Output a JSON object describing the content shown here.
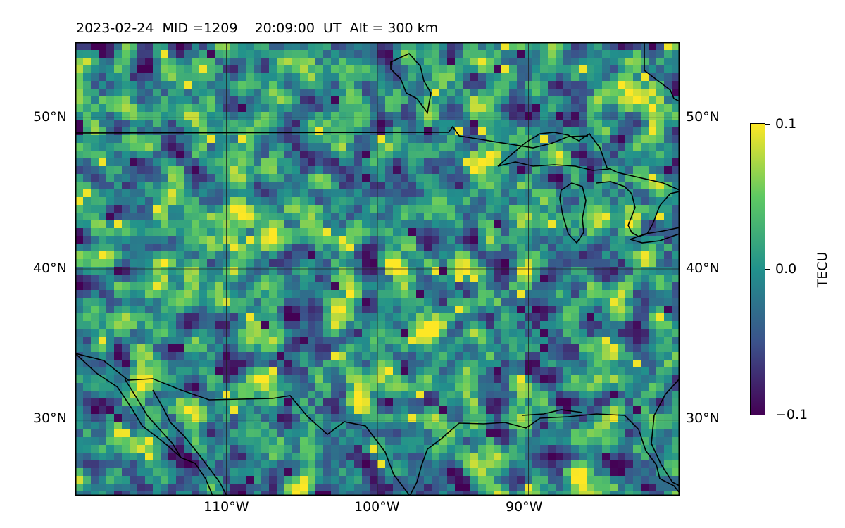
{
  "title": "2023-02-24  MID =1209    20:09:00  UT  Alt = 300 km",
  "map": {
    "variable": "TEC anomaly (viridis colormap)",
    "extent": {
      "lon_min": -120,
      "lon_max": -80,
      "lat_min": 25,
      "lat_max": 55
    },
    "lat_ticks": [
      {
        "value": 50,
        "label": "50°N"
      },
      {
        "value": 40,
        "label": "40°N"
      },
      {
        "value": 30,
        "label": "30°N"
      }
    ],
    "lon_ticks": [
      {
        "value": -110,
        "label": "110°W"
      },
      {
        "value": -100,
        "label": "100°W"
      },
      {
        "value": -90,
        "label": "90°W"
      }
    ],
    "gridlines": true,
    "coastlines": true
  },
  "colorbar": {
    "label": "TECU",
    "min": -0.1,
    "max": 0.1,
    "ticks": [
      {
        "value": 0.1,
        "label": "0.1"
      },
      {
        "value": 0.0,
        "label": "0.0"
      },
      {
        "value": -0.1,
        "label": "−0.1"
      }
    ],
    "colormap": [
      "#440154",
      "#3b528b",
      "#21918c",
      "#5ec962",
      "#fde725"
    ]
  }
}
